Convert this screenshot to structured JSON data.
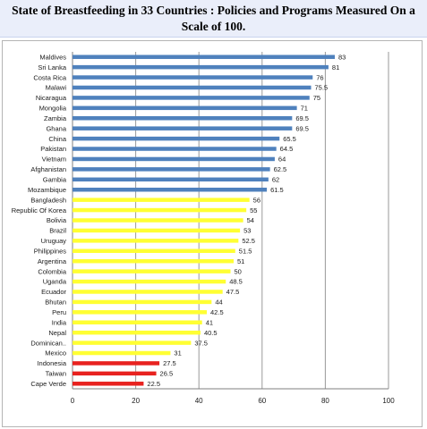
{
  "header": {
    "title_line1": "State of Breastfeeding in 33 Countries : Policies and Programs Measured On a",
    "title_line2": "Scale of 100."
  },
  "chart_data": {
    "type": "bar",
    "orientation": "horizontal",
    "categories": [
      "Maldives",
      "Sri Lanka",
      "Costa Rica",
      "Malawi",
      "Nicaragua",
      "Mongolia",
      "Zambia",
      "Ghana",
      "China",
      "Pakistan",
      "Vietnam",
      "Afghanistan",
      "Gambia",
      "Mozambique",
      "Bangladesh",
      "Republic Of Korea",
      "Bolivia",
      "Brazil",
      "Uruguay",
      "Philippines",
      "Argentina",
      "Colombia",
      "Uganda",
      "Ecuador",
      "Bhutan",
      "Peru",
      "India",
      "Nepal",
      "Dominican..",
      "Mexico",
      "Indonesia",
      "Taiwan",
      "Cape Verde"
    ],
    "values": [
      83,
      81,
      76,
      75.5,
      75,
      71,
      69.5,
      69.5,
      65.5,
      64.5,
      64,
      62.5,
      62,
      61.5,
      56,
      55,
      54,
      53,
      52.5,
      51.5,
      51,
      50,
      48.5,
      47.5,
      44,
      42.5,
      41,
      40.5,
      37.5,
      31,
      27.5,
      26.5,
      22.5
    ],
    "value_labels": [
      "83",
      "81",
      "76",
      "75.5",
      "75",
      "71",
      "69.5",
      "69.5",
      "65.5",
      "64.5",
      "64",
      "62.5",
      "62",
      "61.5",
      "56",
      "55",
      "54",
      "53",
      "52.5",
      "51.5",
      "51",
      "50",
      "48.5",
      "47.5",
      "44",
      "42.5",
      "41",
      "40.5",
      "37.5",
      "31",
      "27.5",
      "26.5",
      "22.5"
    ],
    "bar_colors": [
      "#4f81bd",
      "#4f81bd",
      "#4f81bd",
      "#4f81bd",
      "#4f81bd",
      "#4f81bd",
      "#4f81bd",
      "#4f81bd",
      "#4f81bd",
      "#4f81bd",
      "#4f81bd",
      "#4f81bd",
      "#4f81bd",
      "#4f81bd",
      "#ffff33",
      "#ffff33",
      "#ffff33",
      "#ffff33",
      "#ffff33",
      "#ffff33",
      "#ffff33",
      "#ffff33",
      "#ffff33",
      "#ffff33",
      "#ffff33",
      "#ffff33",
      "#ffff33",
      "#ffff33",
      "#ffff33",
      "#ffff33",
      "#e8221f",
      "#e8221f",
      "#e8221f"
    ],
    "xlim": [
      0,
      100
    ],
    "xticks": [
      "0",
      "20",
      "40",
      "60",
      "80",
      "100"
    ],
    "grid": true
  }
}
